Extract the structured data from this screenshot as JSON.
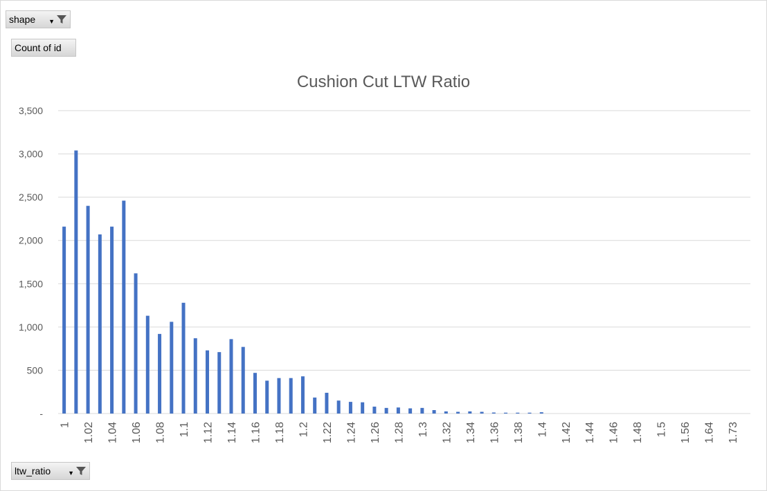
{
  "filters": {
    "shape_label": "shape",
    "value_label": "Count of id",
    "axis_field_label": "ltw_ratio"
  },
  "colors": {
    "bar": "#4472c4",
    "grid": "#d9d9d9",
    "text": "#595959"
  },
  "chart_data": {
    "type": "bar",
    "title": "Cushion Cut LTW Ratio",
    "xlabel": "",
    "ylabel": "",
    "ylim": [
      0,
      3500
    ],
    "yticks": [
      0,
      500,
      1000,
      1500,
      2000,
      2500,
      3000,
      3500
    ],
    "ytick_labels": [
      "-",
      "500",
      "1,000",
      "1,500",
      "2,000",
      "2,500",
      "3,000",
      "3,500"
    ],
    "grid": true,
    "legend": "none",
    "categories": [
      "1",
      "1.01",
      "1.02",
      "1.03",
      "1.04",
      "1.05",
      "1.06",
      "1.07",
      "1.08",
      "1.09",
      "1.1",
      "1.11",
      "1.12",
      "1.13",
      "1.14",
      "1.15",
      "1.16",
      "1.17",
      "1.18",
      "1.19",
      "1.2",
      "1.21",
      "1.22",
      "1.23",
      "1.24",
      "1.25",
      "1.26",
      "1.27",
      "1.28",
      "1.29",
      "1.3",
      "1.31",
      "1.32",
      "1.33",
      "1.34",
      "1.35",
      "1.36",
      "1.37",
      "1.38",
      "1.39",
      "1.4",
      "1.41",
      "1.42",
      "1.43",
      "1.44",
      "1.45",
      "1.46",
      "1.47",
      "1.48",
      "1.49",
      "1.5",
      "1.52",
      "1.56",
      "1.6",
      "1.64",
      "1.68",
      "1.73",
      "1.8"
    ],
    "shown_tick_labels": [
      "1",
      "1.02",
      "1.04",
      "1.06",
      "1.08",
      "1.1",
      "1.12",
      "1.14",
      "1.16",
      "1.18",
      "1.2",
      "1.22",
      "1.24",
      "1.26",
      "1.28",
      "1.3",
      "1.32",
      "1.34",
      "1.36",
      "1.38",
      "1.4",
      "1.42",
      "1.44",
      "1.46",
      "1.48",
      "1.5",
      "1.56",
      "1.64",
      "1.73"
    ],
    "values": [
      2160,
      3040,
      2400,
      2070,
      2160,
      2460,
      1620,
      1130,
      920,
      1060,
      1280,
      870,
      730,
      710,
      860,
      770,
      470,
      380,
      410,
      410,
      430,
      185,
      240,
      150,
      135,
      130,
      80,
      65,
      70,
      60,
      65,
      40,
      25,
      20,
      25,
      20,
      12,
      10,
      10,
      10,
      15,
      0,
      0,
      0,
      0,
      0,
      0,
      0,
      0,
      0,
      0,
      0,
      0,
      0,
      0,
      0,
      0,
      0
    ]
  }
}
